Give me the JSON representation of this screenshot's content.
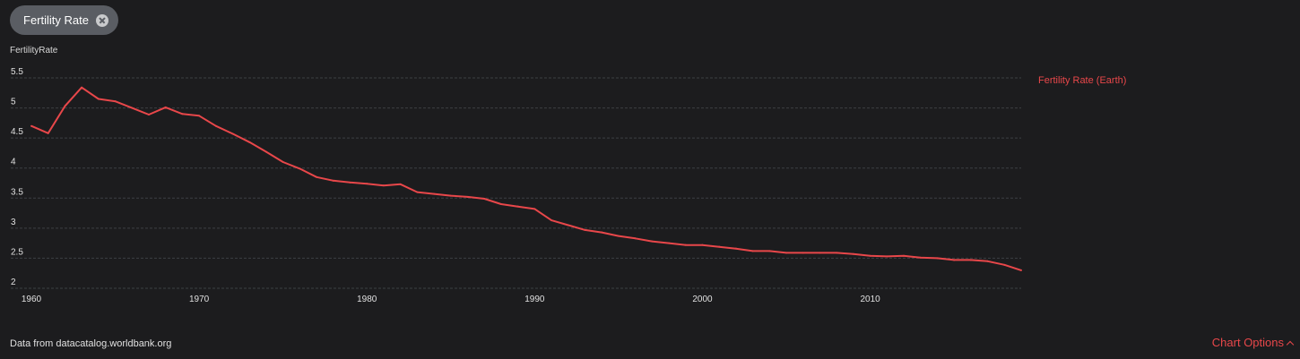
{
  "filter_chip": {
    "label": "Fertility Rate"
  },
  "footer": {
    "source": "Data from datacatalog.worldbank.org",
    "options_label": "Chart Options"
  },
  "colors": {
    "series": "#e8474a",
    "background": "#1c1c1e",
    "grid": "#3d3f43"
  },
  "chart_data": {
    "type": "line",
    "ylabel": "FertilityRate",
    "legend_position": "right",
    "grid": true,
    "xlim": [
      1960,
      2019
    ],
    "ylim": [
      2,
      5.5
    ],
    "x_ticks": [
      1960,
      1970,
      1980,
      1990,
      2000,
      2010
    ],
    "y_ticks": [
      2,
      2.5,
      3,
      3.5,
      4,
      4.5,
      5,
      5.5
    ],
    "series": [
      {
        "name": "Fertility Rate (Earth)",
        "x": [
          1960,
          1961,
          1962,
          1963,
          1964,
          1965,
          1966,
          1967,
          1968,
          1969,
          1970,
          1971,
          1972,
          1973,
          1974,
          1975,
          1976,
          1977,
          1978,
          1979,
          1980,
          1981,
          1982,
          1983,
          1984,
          1985,
          1986,
          1987,
          1988,
          1989,
          1990,
          1991,
          1992,
          1993,
          1994,
          1995,
          1996,
          1997,
          1998,
          1999,
          2000,
          2001,
          2002,
          2003,
          2004,
          2005,
          2006,
          2007,
          2008,
          2009,
          2010,
          2011,
          2012,
          2013,
          2014,
          2015,
          2016,
          2017,
          2018,
          2019
        ],
        "values": [
          4.7,
          4.58,
          5.03,
          5.34,
          5.15,
          5.11,
          5.0,
          4.89,
          5.01,
          4.9,
          4.87,
          4.7,
          4.57,
          4.43,
          4.27,
          4.1,
          3.99,
          3.85,
          3.79,
          3.76,
          3.74,
          3.71,
          3.73,
          3.6,
          3.57,
          3.54,
          3.52,
          3.49,
          3.4,
          3.36,
          3.32,
          3.13,
          3.05,
          2.97,
          2.93,
          2.87,
          2.83,
          2.78,
          2.75,
          2.72,
          2.72,
          2.69,
          2.66,
          2.62,
          2.62,
          2.59,
          2.59,
          2.59,
          2.59,
          2.57,
          2.54,
          2.53,
          2.54,
          2.51,
          2.5,
          2.47,
          2.47,
          2.45,
          2.39,
          2.3
        ]
      }
    ]
  }
}
